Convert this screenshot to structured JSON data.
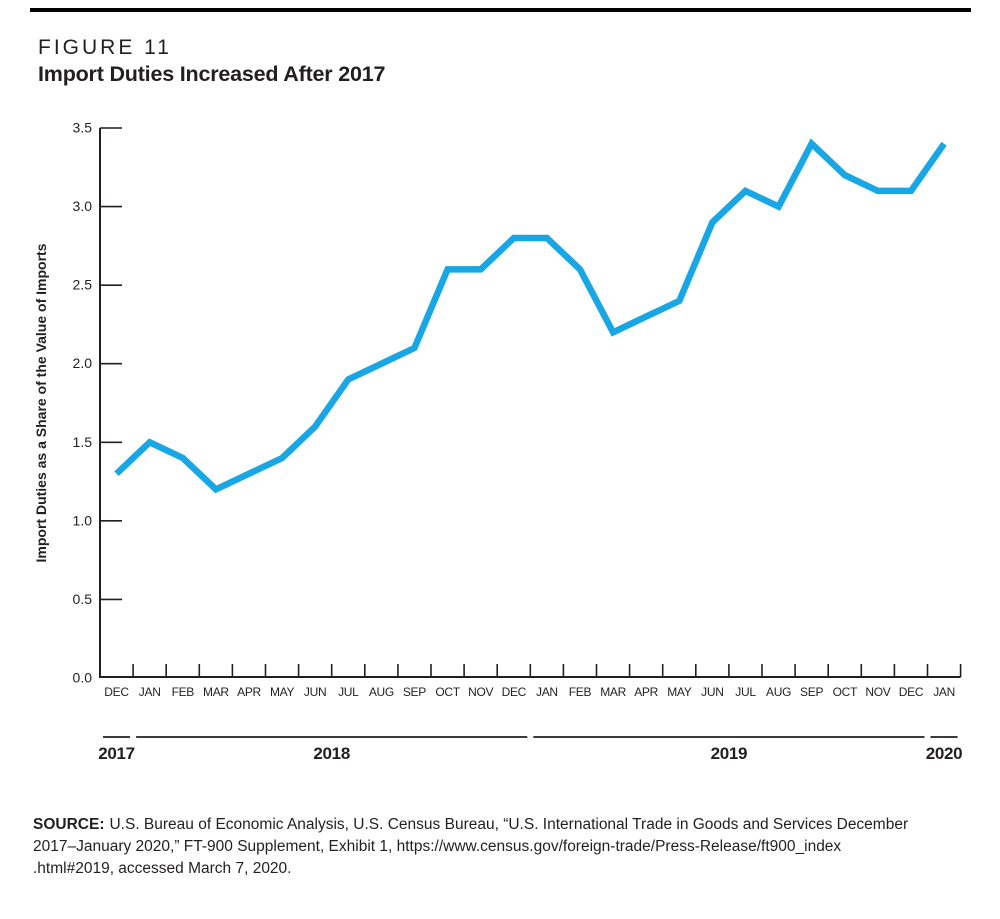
{
  "header": {
    "figure_label": "FIGURE 11",
    "title": "Import Duties Increased After 2017"
  },
  "chart_data": {
    "type": "line",
    "title": "Import Duties Increased After 2017",
    "figure_label": "FIGURE 11",
    "xlabel": "",
    "ylabel": "Import Duties as a Share of the Value of Imports",
    "ylim": [
      0,
      3.5
    ],
    "ytick_interval": 0.5,
    "y_tick_labels": [
      "0.0",
      "0.5",
      "1.0",
      "1.5",
      "2.0",
      "2.5",
      "3.0",
      "3.5"
    ],
    "grid": false,
    "legend": "none",
    "line_color": "#18A7E4",
    "axis_color": "#231F20",
    "x_tick_labels": [
      "DEC",
      "JAN",
      "FEB",
      "MAR",
      "APR",
      "MAY",
      "JUN",
      "JUL",
      "AUG",
      "SEP",
      "OCT",
      "NOV",
      "DEC",
      "JAN",
      "FEB",
      "MAR",
      "APR",
      "MAY",
      "JUN",
      "JUL",
      "AUG",
      "SEP",
      "OCT",
      "NOV",
      "DEC",
      "JAN"
    ],
    "year_groups": [
      {
        "label": "2017",
        "start": 0,
        "end": 0
      },
      {
        "label": "2018",
        "start": 1,
        "end": 12
      },
      {
        "label": "2019",
        "start": 13,
        "end": 24
      },
      {
        "label": "2020",
        "start": 25,
        "end": 25
      }
    ],
    "series": [
      {
        "name": "Import duties as a share of the value of imports",
        "values": [
          1.3,
          1.5,
          1.4,
          1.2,
          1.3,
          1.4,
          1.6,
          1.9,
          2.0,
          2.1,
          2.6,
          2.6,
          2.8,
          2.8,
          2.6,
          2.2,
          2.3,
          2.4,
          2.9,
          3.1,
          3.0,
          3.4,
          3.2,
          3.1,
          3.1,
          3.4
        ]
      }
    ]
  },
  "source": {
    "label": "SOURCE:",
    "lines": [
      "U.S. Bureau of Economic Analysis, U.S. Census Bureau, “U.S. International Trade in Goods and Services December",
      "2017–January 2020,” FT-900 Supplement, Exhibit 1, https://www.census.gov/foreign-trade/Press-Release/ft900_index",
      ".html#2019, accessed March 7, 2020."
    ]
  }
}
